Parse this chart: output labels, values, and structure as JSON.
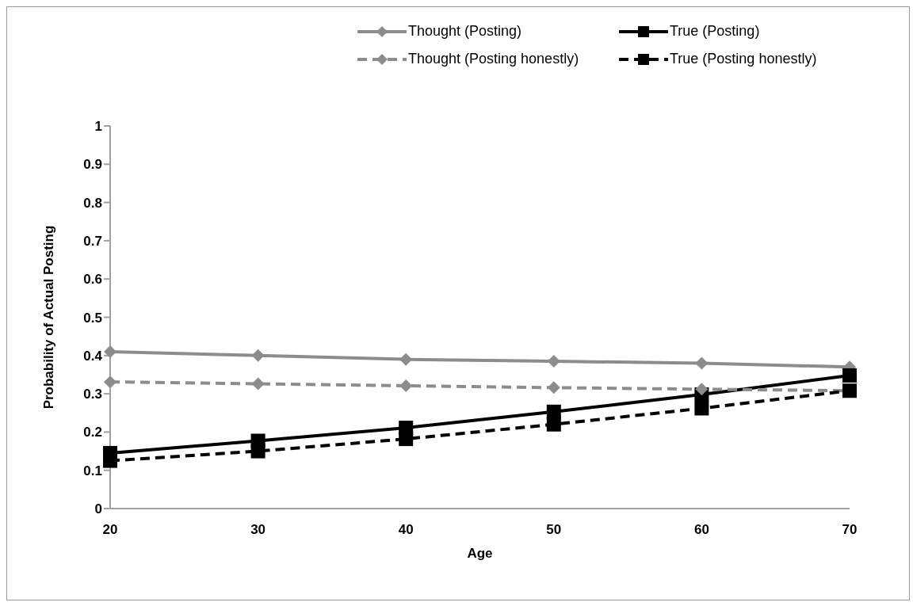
{
  "chart_data": {
    "type": "line",
    "xlabel": "Age",
    "ylabel": "Probability of Actual Posting",
    "categories": [
      "20",
      "30",
      "40",
      "50",
      "60",
      "70"
    ],
    "ylim": [
      0,
      1
    ],
    "yticks": [
      0,
      0.1,
      0.2,
      0.3,
      0.4,
      0.5,
      0.6,
      0.7,
      0.8,
      0.9,
      1
    ],
    "grid": false,
    "legend": "top",
    "series": [
      {
        "name": "Thought (Posting)",
        "color": "#8c8c8c",
        "marker": "diamond",
        "line_style": "solid",
        "values": [
          0.41,
          0.4,
          0.39,
          0.385,
          0.38,
          0.37
        ]
      },
      {
        "name": "True (Posting)",
        "color": "#000000",
        "marker": "square",
        "line_style": "solid",
        "values": [
          0.145,
          0.177,
          0.211,
          0.253,
          0.298,
          0.348
        ]
      },
      {
        "name": "Thought (Posting honestly)",
        "color": "#8c8c8c",
        "marker": "diamond",
        "line_style": "dashed",
        "values": [
          0.331,
          0.326,
          0.321,
          0.316,
          0.312,
          0.308
        ]
      },
      {
        "name": "True (Posting honestly)",
        "color": "#000000",
        "marker": "square",
        "line_style": "dashed",
        "values": [
          0.125,
          0.15,
          0.182,
          0.22,
          0.262,
          0.308
        ]
      }
    ]
  }
}
